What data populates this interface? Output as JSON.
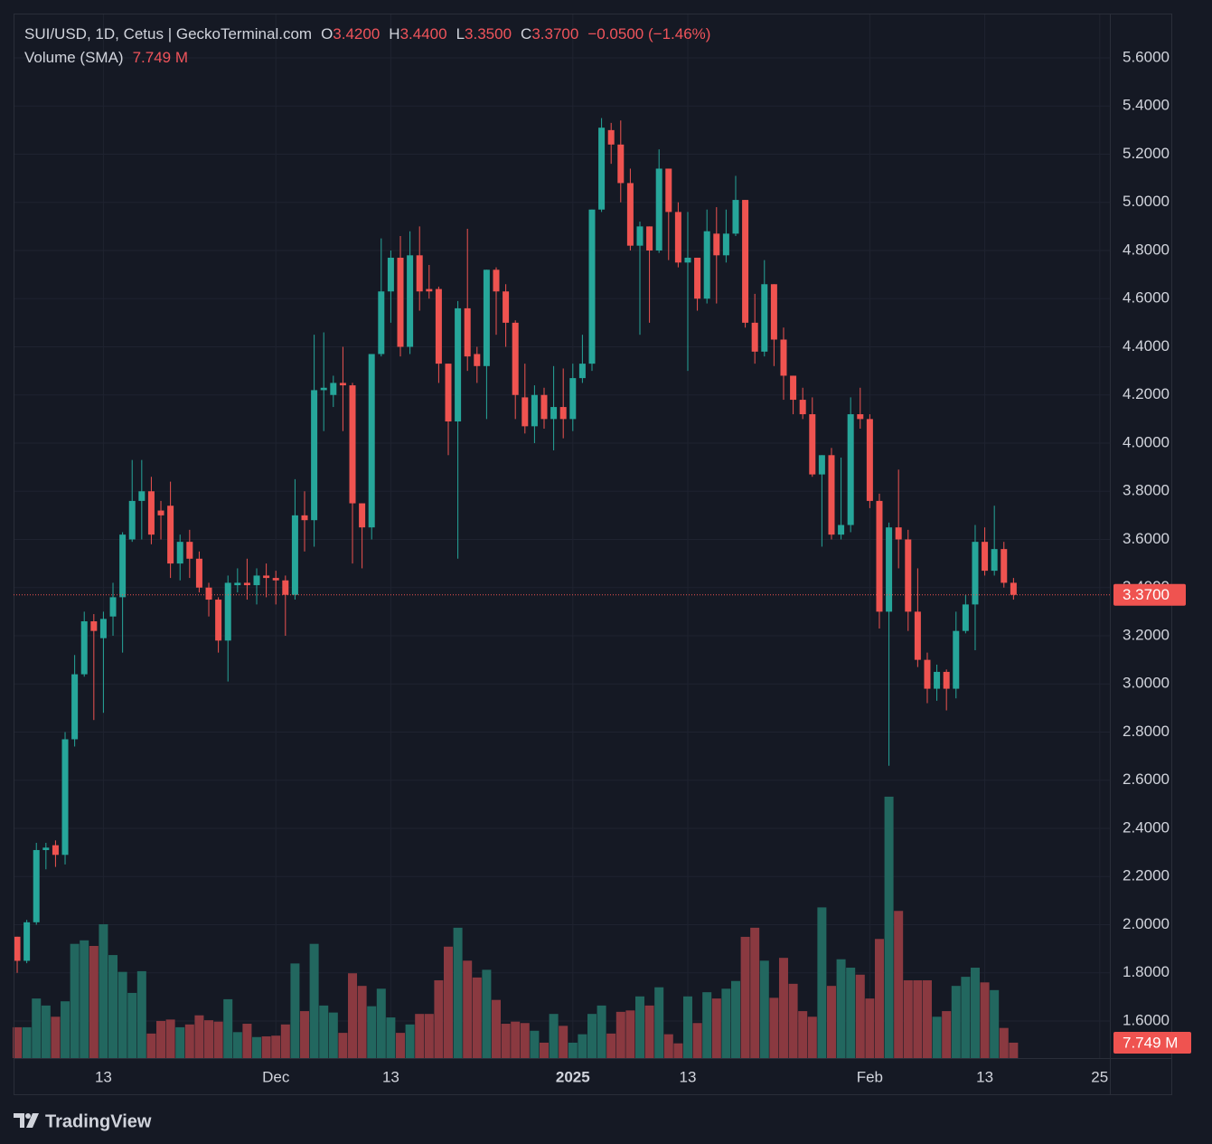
{
  "chart_data": {
    "type": "candlestick",
    "title": "SUI/USD, 1D, Cetus | GeckoTerminal.com",
    "ohlc_header": [
      {
        "key": "O",
        "value": "3.4200"
      },
      {
        "key": "H",
        "value": "3.4400"
      },
      {
        "key": "L",
        "value": "3.3500"
      },
      {
        "key": "C",
        "value": "3.3700"
      }
    ],
    "change": "−0.0500 (−1.46%)",
    "volume_title": "Volume (SMA)",
    "volume_sma": {
      "value": 7.749,
      "label": "7.749 M"
    },
    "last_price": {
      "value": 3.37,
      "label": "3.3700"
    },
    "brand": "TradingView",
    "up_color": "#26a69a",
    "down_color": "#ef5350",
    "volume_up_color": "#22675f",
    "volume_down_color": "#8a3940",
    "grid": true,
    "open": [
      1.95,
      1.85,
      2.01,
      2.31,
      2.33,
      2.29,
      2.77,
      3.04,
      3.26,
      3.19,
      3.28,
      3.36,
      3.6,
      3.76,
      3.8,
      3.72,
      3.74,
      3.5,
      3.59,
      3.52,
      3.4,
      3.35,
      3.18,
      3.41,
      3.42,
      3.41,
      3.45,
      3.44,
      3.43,
      3.37,
      3.7,
      3.68,
      4.22,
      4.2,
      4.25,
      4.24,
      3.75,
      3.65,
      4.37,
      4.63,
      4.77,
      4.4,
      4.78,
      4.64,
      4.64,
      4.33,
      4.09,
      4.56,
      4.37,
      4.32,
      4.72,
      4.63,
      4.5,
      4.19,
      4.07,
      4.2,
      4.1,
      4.15,
      4.1,
      4.27,
      4.33,
      4.97,
      5.3,
      5.24,
      5.08,
      4.82,
      4.9,
      4.8,
      5.14,
      4.96,
      4.75,
      4.77,
      4.6,
      4.87,
      4.78,
      4.87,
      5.01,
      4.5,
      4.38,
      4.66,
      4.43,
      4.28,
      4.18,
      4.12,
      3.87,
      3.95,
      3.62,
      3.66,
      4.12,
      4.1,
      3.76,
      3.3,
      3.65,
      3.6,
      3.3,
      3.1,
      2.98,
      3.05,
      2.98,
      3.22,
      3.33,
      3.59,
      3.47,
      3.56,
      3.42
    ],
    "high": [
      1.95,
      2.02,
      2.34,
      2.34,
      2.35,
      2.8,
      3.12,
      3.3,
      3.29,
      3.3,
      3.42,
      3.63,
      3.93,
      3.93,
      3.86,
      3.76,
      3.84,
      3.62,
      3.64,
      3.55,
      3.42,
      3.36,
      3.45,
      3.48,
      3.52,
      3.48,
      3.5,
      3.47,
      3.45,
      3.85,
      3.8,
      4.45,
      4.46,
      4.28,
      4.4,
      4.25,
      3.75,
      4.37,
      4.85,
      4.8,
      4.86,
      4.88,
      4.9,
      4.74,
      4.65,
      4.33,
      4.59,
      4.89,
      4.4,
      4.72,
      4.73,
      4.66,
      4.51,
      4.33,
      4.24,
      4.23,
      4.32,
      4.31,
      4.33,
      4.45,
      4.97,
      5.35,
      5.33,
      5.34,
      5.14,
      4.92,
      4.9,
      5.22,
      5.14,
      5.0,
      4.96,
      4.77,
      4.97,
      4.98,
      4.97,
      5.11,
      5.01,
      4.62,
      4.76,
      4.66,
      4.48,
      4.28,
      4.23,
      4.19,
      3.95,
      3.98,
      3.94,
      4.19,
      4.23,
      4.12,
      3.79,
      3.67,
      3.89,
      3.64,
      3.48,
      3.13,
      3.08,
      3.06,
      3.3,
      3.37,
      3.66,
      3.65,
      3.74,
      3.59,
      3.44
    ],
    "low": [
      1.8,
      1.84,
      2.0,
      2.23,
      2.24,
      2.25,
      2.74,
      3.03,
      2.85,
      2.88,
      3.2,
      3.13,
      3.59,
      3.6,
      3.58,
      3.6,
      3.44,
      3.43,
      3.44,
      3.38,
      3.28,
      3.13,
      3.01,
      3.38,
      3.35,
      3.33,
      3.36,
      3.33,
      3.2,
      3.35,
      3.55,
      3.57,
      4.05,
      4.15,
      4.05,
      3.5,
      3.48,
      3.6,
      4.36,
      4.5,
      4.36,
      4.37,
      4.55,
      4.6,
      4.25,
      3.95,
      3.52,
      4.3,
      4.25,
      4.1,
      4.45,
      4.4,
      4.1,
      4.04,
      4.0,
      4.06,
      3.97,
      4.02,
      4.05,
      4.25,
      4.3,
      4.96,
      5.16,
      5.0,
      4.8,
      4.45,
      4.5,
      4.79,
      4.76,
      4.73,
      4.3,
      4.55,
      4.58,
      4.58,
      4.75,
      4.86,
      4.48,
      4.33,
      4.36,
      4.32,
      4.18,
      4.12,
      4.1,
      3.86,
      3.57,
      3.6,
      3.6,
      3.63,
      4.06,
      3.73,
      3.23,
      2.66,
      3.48,
      3.22,
      3.07,
      2.92,
      2.93,
      2.89,
      2.94,
      3.21,
      3.14,
      3.45,
      3.45,
      3.4,
      3.35
    ],
    "close": [
      1.85,
      2.01,
      2.31,
      2.32,
      2.29,
      2.77,
      3.04,
      3.26,
      3.22,
      3.27,
      3.36,
      3.62,
      3.76,
      3.8,
      3.62,
      3.7,
      3.5,
      3.59,
      3.52,
      3.4,
      3.35,
      3.18,
      3.42,
      3.42,
      3.41,
      3.45,
      3.44,
      3.43,
      3.37,
      3.7,
      3.68,
      4.22,
      4.23,
      4.25,
      4.24,
      3.75,
      3.65,
      4.37,
      4.63,
      4.77,
      4.4,
      4.78,
      4.63,
      4.63,
      4.33,
      4.09,
      4.56,
      4.36,
      4.32,
      4.72,
      4.63,
      4.5,
      4.2,
      4.07,
      4.2,
      4.1,
      4.15,
      4.1,
      4.27,
      4.33,
      4.97,
      5.31,
      5.24,
      5.08,
      4.82,
      4.9,
      4.8,
      5.14,
      4.96,
      4.75,
      4.77,
      4.6,
      4.88,
      4.78,
      4.87,
      5.01,
      4.5,
      4.38,
      4.66,
      4.43,
      4.28,
      4.18,
      4.12,
      3.87,
      3.95,
      3.62,
      3.66,
      4.12,
      4.1,
      3.76,
      3.3,
      3.65,
      3.6,
      3.3,
      3.1,
      2.98,
      3.05,
      2.98,
      3.22,
      3.33,
      3.59,
      3.47,
      3.56,
      3.42,
      3.37
    ],
    "volume": [
      4.4,
      4.4,
      8.5,
      7.5,
      5.9,
      8.1,
      16.3,
      16.8,
      16.0,
      19.1,
      14.7,
      12.3,
      9.3,
      12.4,
      3.5,
      5.3,
      5.5,
      4.4,
      4.8,
      6.1,
      5.4,
      5.2,
      8.4,
      3.7,
      4.9,
      3.0,
      3.1,
      3.2,
      4.8,
      13.5,
      6.7,
      16.3,
      7.5,
      6.5,
      3.6,
      12.1,
      10.3,
      7.4,
      9.9,
      5.8,
      3.6,
      4.8,
      6.3,
      6.3,
      11.1,
      15.9,
      18.6,
      13.9,
      11.5,
      12.6,
      8.3,
      4.9,
      5.2,
      5.0,
      3.9,
      2.2,
      6.3,
      4.6,
      2.2,
      3.4,
      6.3,
      7.5,
      3.5,
      6.6,
      6.8,
      8.8,
      7.5,
      10.1,
      3.4,
      2.1,
      8.8,
      5.0,
      9.4,
      8.5,
      9.9,
      11.0,
      17.3,
      18.6,
      13.9,
      8.6,
      14.3,
      10.6,
      6.7,
      5.9,
      21.5,
      10.3,
      14.1,
      12.9,
      11.9,
      8.5,
      17.0,
      37.3,
      21.0,
      11.1,
      11.1,
      11.1,
      5.9,
      6.7,
      10.3,
      11.6,
      12.9,
      10.8,
      9.7,
      4.3,
      2.2
    ],
    "ylim": [
      1.446,
      5.784
    ],
    "vlim": [
      0,
      40
    ],
    "xlim": [
      -0.38,
      114.06
    ],
    "yticks": [
      {
        "value": 1.6,
        "label": "1.6000"
      },
      {
        "value": 1.8,
        "label": "1.8000"
      },
      {
        "value": 2.0,
        "label": "2.0000"
      },
      {
        "value": 2.2,
        "label": "2.2000"
      },
      {
        "value": 2.4,
        "label": "2.4000"
      },
      {
        "value": 2.6,
        "label": "2.6000"
      },
      {
        "value": 2.8,
        "label": "2.8000"
      },
      {
        "value": 3.0,
        "label": "3.0000"
      },
      {
        "value": 3.2,
        "label": "3.2000"
      },
      {
        "value": 3.4,
        "label": "3.4000"
      },
      {
        "value": 3.6,
        "label": "3.6000"
      },
      {
        "value": 3.8,
        "label": "3.8000"
      },
      {
        "value": 4.0,
        "label": "4.0000"
      },
      {
        "value": 4.2,
        "label": "4.2000"
      },
      {
        "value": 4.4,
        "label": "4.4000"
      },
      {
        "value": 4.6,
        "label": "4.6000"
      },
      {
        "value": 4.8,
        "label": "4.8000"
      },
      {
        "value": 5.0,
        "label": "5.0000"
      },
      {
        "value": 5.2,
        "label": "5.2000"
      },
      {
        "value": 5.4,
        "label": "5.4000"
      },
      {
        "value": 5.6,
        "label": "5.6000"
      }
    ],
    "xticks": [
      {
        "value": 9,
        "label": "13"
      },
      {
        "value": 27,
        "label": "Dec"
      },
      {
        "value": 39,
        "label": "13"
      },
      {
        "value": 58,
        "label": "2025"
      },
      {
        "value": 70,
        "label": "13"
      },
      {
        "value": 89,
        "label": "Feb"
      },
      {
        "value": 101,
        "label": "13"
      },
      {
        "value": 113,
        "label": "25"
      }
    ]
  }
}
